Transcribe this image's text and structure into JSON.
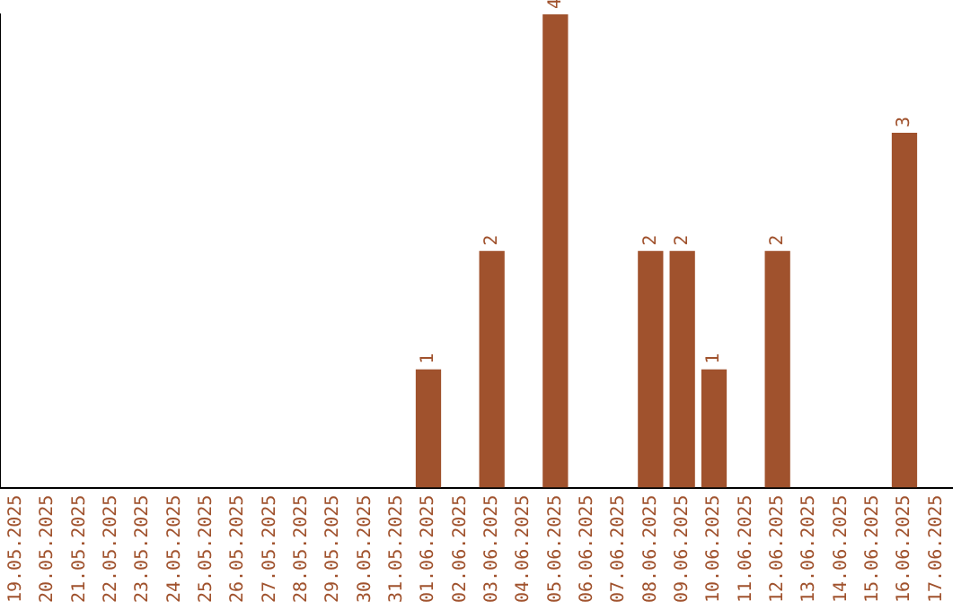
{
  "chart_data": {
    "type": "bar",
    "categories": [
      "19.05.2025",
      "20.05.2025",
      "21.05.2025",
      "22.05.2025",
      "23.05.2025",
      "24.05.2025",
      "25.05.2025",
      "26.05.2025",
      "27.05.2025",
      "28.05.2025",
      "29.05.2025",
      "30.05.2025",
      "31.05.2025",
      "01.06.2025",
      "02.06.2025",
      "03.06.2025",
      "04.06.2025",
      "05.06.2025",
      "06.06.2025",
      "07.06.2025",
      "08.06.2025",
      "09.06.2025",
      "10.06.2025",
      "11.06.2025",
      "12.06.2025",
      "13.06.2025",
      "14.06.2025",
      "15.06.2025",
      "16.06.2025",
      "17.06.2025"
    ],
    "values": [
      null,
      null,
      null,
      null,
      null,
      null,
      null,
      null,
      null,
      null,
      null,
      null,
      null,
      1,
      null,
      2,
      null,
      4,
      null,
      null,
      2,
      2,
      1,
      null,
      2,
      null,
      null,
      null,
      3,
      null
    ],
    "value_labels": [
      null,
      null,
      null,
      null,
      null,
      null,
      null,
      null,
      null,
      null,
      null,
      null,
      null,
      "1",
      null,
      "2",
      null,
      "4",
      null,
      null,
      "2",
      "2",
      "1",
      null,
      "2",
      null,
      null,
      null,
      "3",
      null
    ],
    "color": "#a0522d",
    "grid": false,
    "legend": false,
    "tick_labels": "x"
  }
}
